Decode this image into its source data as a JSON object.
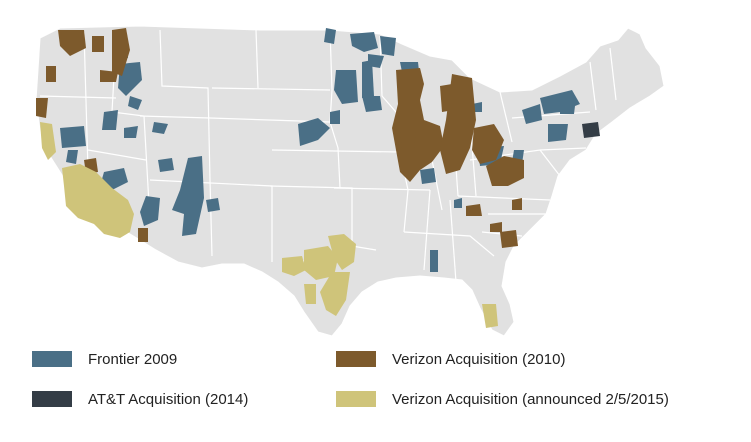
{
  "colors": {
    "background": "#ffffff",
    "land": "#e1e1e1",
    "borders": "#ffffff",
    "frontier": "#4a6f86",
    "att": "#343d46",
    "verizon2010": "#7d5a2c",
    "verizon2015": "#cfc47a"
  },
  "legend": [
    {
      "label": "Frontier 2009",
      "color": "#4a6f86",
      "icon": "legend-swatch"
    },
    {
      "label": "AT&T Acquisition (2014)",
      "color": "#343d46",
      "icon": "legend-swatch"
    },
    {
      "label": "Verizon Acquisition (2010)",
      "color": "#7d5a2c",
      "icon": "legend-swatch"
    },
    {
      "label": "Verizon Acquisition (announced 2/5/2015)",
      "color": "#cfc47a",
      "icon": "legend-swatch"
    }
  ]
}
